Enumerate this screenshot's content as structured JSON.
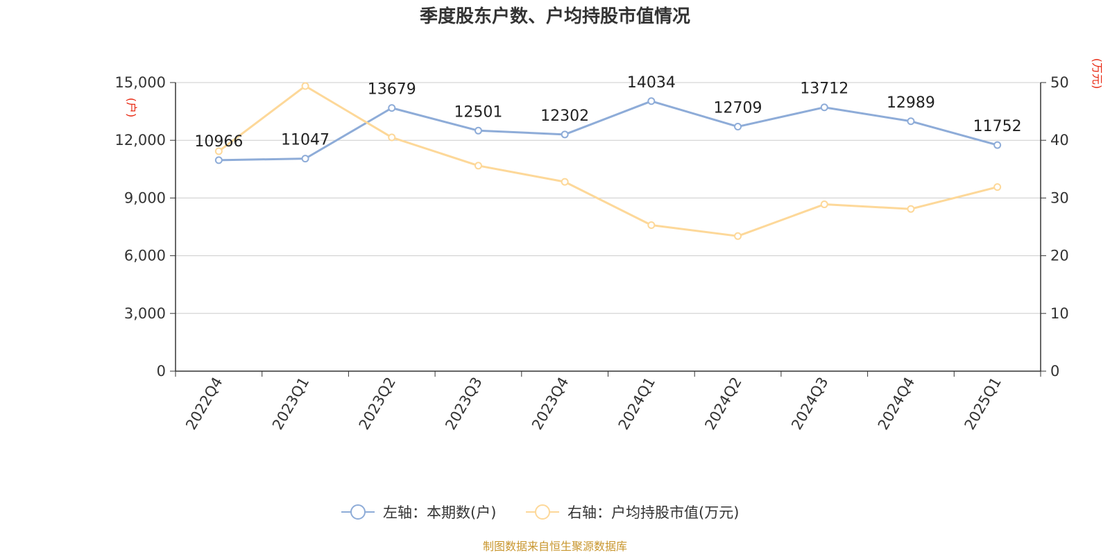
{
  "chart_data": {
    "type": "line",
    "title": "季度股东户数、户均持股市值情况",
    "categories": [
      "2022Q4",
      "2023Q1",
      "2023Q2",
      "2023Q3",
      "2023Q4",
      "2024Q1",
      "2024Q2",
      "2024Q3",
      "2024Q4",
      "2025Q1"
    ],
    "left_axis": {
      "unit": "(户)",
      "ylim": [
        0,
        15000
      ],
      "ticks": [
        "0",
        "3,000",
        "6,000",
        "9,000",
        "12,000",
        "15,000"
      ]
    },
    "right_axis": {
      "unit": "(万元)",
      "ylim": [
        0,
        50
      ],
      "ticks": [
        "0",
        "10",
        "20",
        "30",
        "40",
        "50"
      ]
    },
    "series": [
      {
        "name": "左轴：本期数(户)",
        "axis": "left",
        "color": "#8eacd8",
        "values": [
          10966,
          11047,
          13679,
          12501,
          12302,
          14034,
          12709,
          13712,
          12989,
          11752
        ],
        "labels": [
          "10966",
          "11047",
          "13679",
          "12501",
          "12302",
          "14034",
          "12709",
          "13712",
          "12989",
          "11752"
        ]
      },
      {
        "name": "右轴：户均持股市值(万元)",
        "axis": "right",
        "color": "#fdd899",
        "values": [
          38.1,
          49.4,
          40.5,
          35.6,
          32.8,
          25.3,
          23.4,
          28.9,
          28.1,
          31.9
        ]
      }
    ],
    "grid": true,
    "legend_position": "bottom-center"
  },
  "source_text": "制图数据来自恒生聚源数据库"
}
